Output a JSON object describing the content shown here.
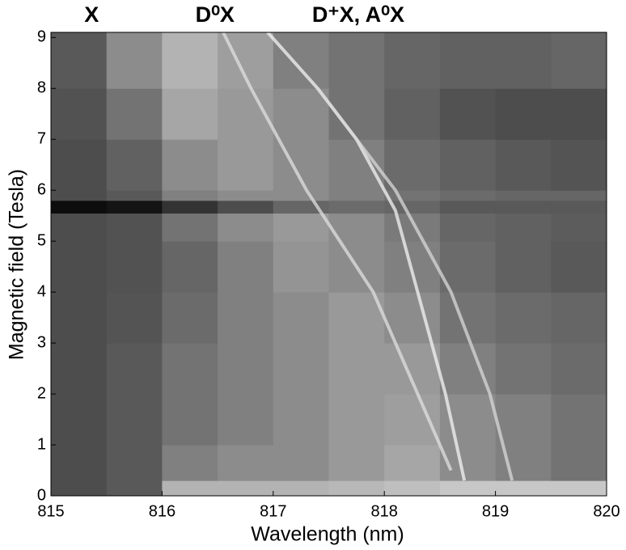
{
  "chart_data": {
    "type": "heatmap",
    "annotations": [
      "X",
      "D⁰X",
      "D⁺X, A⁰X"
    ],
    "annotation_x": [
      815.3,
      816.3,
      817.35
    ],
    "xlabel": "Wavelength (nm)",
    "ylabel": "Magnetic field (Tesla)",
    "xlim": [
      815,
      820
    ],
    "ylim": [
      0,
      9.1
    ],
    "xticks": [
      815,
      816,
      817,
      818,
      819,
      820
    ],
    "yticks": [
      0,
      1,
      2,
      3,
      4,
      5,
      6,
      7,
      8,
      9
    ],
    "x_edges": [
      815,
      815.5,
      816,
      816.5,
      817,
      817.5,
      818,
      818.5,
      819,
      819.5,
      820
    ],
    "y_edges": [
      0,
      0.3,
      1,
      2,
      3,
      4,
      5,
      5.55,
      5.8,
      6,
      7,
      8,
      9.1
    ],
    "z": [
      [
        0.3,
        0.35,
        0.7,
        0.7,
        0.7,
        0.72,
        0.75,
        0.78,
        0.78,
        0.78
      ],
      [
        0.3,
        0.35,
        0.5,
        0.55,
        0.55,
        0.6,
        0.65,
        0.55,
        0.5,
        0.45
      ],
      [
        0.3,
        0.35,
        0.45,
        0.5,
        0.55,
        0.6,
        0.62,
        0.55,
        0.5,
        0.45
      ],
      [
        0.3,
        0.35,
        0.45,
        0.5,
        0.55,
        0.6,
        0.6,
        0.5,
        0.45,
        0.42
      ],
      [
        0.3,
        0.33,
        0.42,
        0.5,
        0.55,
        0.6,
        0.55,
        0.45,
        0.42,
        0.4
      ],
      [
        0.3,
        0.32,
        0.4,
        0.5,
        0.58,
        0.55,
        0.5,
        0.42,
        0.38,
        0.35
      ],
      [
        0.3,
        0.32,
        0.45,
        0.55,
        0.6,
        0.55,
        0.48,
        0.4,
        0.38,
        0.36
      ],
      [
        0.05,
        0.08,
        0.2,
        0.3,
        0.4,
        0.42,
        0.4,
        0.35,
        0.35,
        0.35
      ],
      [
        0.3,
        0.35,
        0.5,
        0.55,
        0.55,
        0.5,
        0.45,
        0.42,
        0.4,
        0.4
      ],
      [
        0.3,
        0.38,
        0.55,
        0.6,
        0.55,
        0.5,
        0.42,
        0.38,
        0.35,
        0.33
      ],
      [
        0.32,
        0.45,
        0.65,
        0.6,
        0.55,
        0.45,
        0.38,
        0.32,
        0.3,
        0.3
      ],
      [
        0.35,
        0.55,
        0.7,
        0.62,
        0.5,
        0.45,
        0.4,
        0.38,
        0.38,
        0.4
      ]
    ],
    "series": [
      {
        "color": "#f4f4f4",
        "x": [
          818.72,
          818.55,
          818.3,
          818.1,
          817.75,
          817.4,
          816.95
        ],
        "y": [
          0.3,
          2,
          4,
          5.6,
          7,
          8,
          9.1
        ]
      },
      {
        "color": "#d8d8d8",
        "x": [
          819.15,
          818.95,
          818.6,
          818.1,
          817.4
        ],
        "y": [
          0.3,
          2,
          4,
          6,
          8
        ]
      },
      {
        "color": "#e0e0e0",
        "x": [
          818.6,
          818.3,
          817.9,
          817.3,
          816.8,
          816.55
        ],
        "y": [
          0.5,
          2,
          4,
          6,
          8,
          9.1
        ]
      }
    ]
  }
}
